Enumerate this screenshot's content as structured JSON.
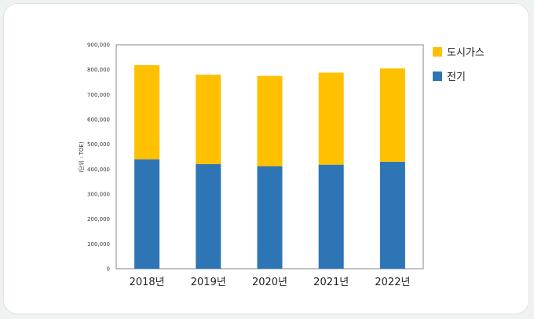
{
  "colors": {
    "gas": "#FFC000",
    "electric": "#2E75B6"
  },
  "chart_data": {
    "type": "bar",
    "stacked": true,
    "categories": [
      "2018년",
      "2019년",
      "2020년",
      "2021년",
      "2022년"
    ],
    "series": [
      {
        "name": "전기",
        "color": "#2E75B6",
        "values": [
          440000,
          420000,
          412000,
          418000,
          430000
        ]
      },
      {
        "name": "도시가스",
        "color": "#FFC000",
        "values": [
          378000,
          360000,
          363000,
          370000,
          375000
        ]
      }
    ],
    "ylabel": "(단위 : TOE)",
    "ylim": [
      0,
      900000
    ],
    "yticks": [
      "0",
      "100,000",
      "200,000",
      "300,000",
      "400,000",
      "500,000",
      "600,000",
      "700,000",
      "800,000",
      "900,000"
    ],
    "legend_position": "right",
    "grid": false
  }
}
